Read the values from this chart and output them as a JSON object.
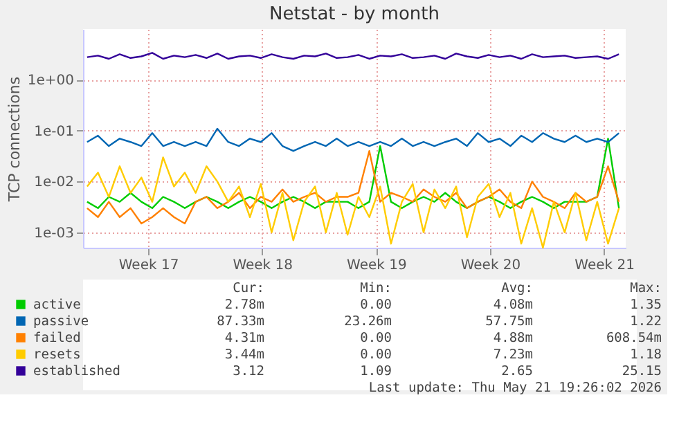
{
  "chart_data": {
    "type": "line",
    "title": "Netstat - by month",
    "ylabel": "TCP connections",
    "log": true,
    "grid": true,
    "legend": "bottom left",
    "marker": "none",
    "line_style": "solid",
    "xlim": [
      "2026-04-16T00:00",
      "2026-05-19T08:00"
    ],
    "xticks": [
      {
        "value": "2026-04-20",
        "label": "Week 17"
      },
      {
        "value": "2026-04-27",
        "label": "Week 18"
      },
      {
        "value": "2026-05-04",
        "label": "Week 19"
      },
      {
        "value": "2026-05-11",
        "label": "Week 20"
      },
      {
        "value": "2026-05-18",
        "label": "Week 21"
      }
    ],
    "ylim": [
      0.0005,
      10
    ],
    "yticks": [
      {
        "value": 0.001,
        "label": "1e-03"
      },
      {
        "value": 0.01,
        "label": "1e-02"
      },
      {
        "value": 0.1,
        "label": "1e-01"
      },
      {
        "value": 1,
        "label": "1e+00"
      }
    ],
    "x": [
      "2026-04-16T06:00",
      "2026-04-16T22:00",
      "2026-04-17T14:00",
      "2026-04-18T06:00",
      "2026-04-18T22:00",
      "2026-04-19T14:00",
      "2026-04-20T06:00",
      "2026-04-20T22:00",
      "2026-04-21T14:00",
      "2026-04-22T06:00",
      "2026-04-22T22:00",
      "2026-04-23T14:00",
      "2026-04-24T06:00",
      "2026-04-24T22:00",
      "2026-04-25T14:00",
      "2026-04-26T06:00",
      "2026-04-26T22:00",
      "2026-04-27T14:00",
      "2026-04-28T06:00",
      "2026-04-28T22:00",
      "2026-04-29T14:00",
      "2026-04-30T06:00",
      "2026-04-30T22:00",
      "2026-05-01T14:00",
      "2026-05-02T06:00",
      "2026-05-02T22:00",
      "2026-05-03T14:00",
      "2026-05-04T06:00",
      "2026-05-04T22:00",
      "2026-05-05T14:00",
      "2026-05-06T06:00",
      "2026-05-06T22:00",
      "2026-05-07T14:00",
      "2026-05-08T06:00",
      "2026-05-08T22:00",
      "2026-05-09T14:00",
      "2026-05-10T06:00",
      "2026-05-10T22:00",
      "2026-05-11T14:00",
      "2026-05-12T06:00",
      "2026-05-12T22:00",
      "2026-05-13T14:00",
      "2026-05-14T06:00",
      "2026-05-14T22:00",
      "2026-05-15T14:00",
      "2026-05-16T06:00",
      "2026-05-16T22:00",
      "2026-05-17T14:00",
      "2026-05-18T06:00",
      "2026-05-18T22:00"
    ],
    "series": [
      {
        "name": "active",
        "color": "#00cc00",
        "values": [
          0.004,
          0.003,
          0.005,
          0.004,
          0.006,
          0.004,
          0.003,
          0.005,
          0.004,
          0.003,
          0.004,
          0.005,
          0.004,
          0.003,
          0.004,
          0.005,
          0.004,
          0.003,
          0.004,
          0.005,
          0.004,
          0.003,
          0.004,
          0.004,
          0.004,
          0.003,
          0.004,
          0.05,
          0.004,
          0.003,
          0.004,
          0.005,
          0.004,
          0.006,
          0.004,
          0.003,
          0.004,
          0.005,
          0.004,
          0.003,
          0.004,
          0.005,
          0.004,
          0.003,
          0.004,
          0.004,
          0.004,
          0.005,
          0.07,
          0.003
        ]
      },
      {
        "name": "passive",
        "color": "#0066b3",
        "values": [
          0.06,
          0.08,
          0.05,
          0.07,
          0.06,
          0.05,
          0.09,
          0.05,
          0.06,
          0.05,
          0.06,
          0.05,
          0.11,
          0.06,
          0.05,
          0.07,
          0.06,
          0.09,
          0.05,
          0.04,
          0.05,
          0.06,
          0.05,
          0.07,
          0.05,
          0.06,
          0.05,
          0.06,
          0.05,
          0.07,
          0.05,
          0.06,
          0.05,
          0.06,
          0.07,
          0.05,
          0.09,
          0.06,
          0.07,
          0.05,
          0.08,
          0.06,
          0.09,
          0.07,
          0.06,
          0.08,
          0.06,
          0.07,
          0.06,
          0.09
        ]
      },
      {
        "name": "failed",
        "color": "#ff8000",
        "values": [
          0.003,
          0.002,
          0.004,
          0.002,
          0.003,
          0.0015,
          0.002,
          0.003,
          0.002,
          0.0015,
          0.004,
          0.005,
          0.003,
          0.004,
          0.006,
          0.003,
          0.005,
          0.004,
          0.007,
          0.004,
          0.005,
          0.006,
          0.004,
          0.005,
          0.005,
          0.006,
          0.04,
          0.004,
          0.006,
          0.005,
          0.004,
          0.007,
          0.005,
          0.004,
          0.006,
          0.003,
          0.004,
          0.005,
          0.007,
          0.004,
          0.003,
          0.01,
          0.005,
          0.004,
          0.003,
          0.006,
          0.004,
          0.005,
          0.02,
          0.004
        ]
      },
      {
        "name": "resets",
        "color": "#ffcc00",
        "values": [
          0.008,
          0.015,
          0.005,
          0.02,
          0.006,
          0.012,
          0.004,
          0.03,
          0.008,
          0.015,
          0.006,
          0.02,
          0.01,
          0.004,
          0.008,
          0.002,
          0.009,
          0.001,
          0.006,
          0.0007,
          0.004,
          0.008,
          0.001,
          0.006,
          0.0009,
          0.005,
          0.002,
          0.008,
          0.0006,
          0.004,
          0.009,
          0.001,
          0.007,
          0.003,
          0.008,
          0.0008,
          0.005,
          0.009,
          0.002,
          0.006,
          0.0006,
          0.003,
          0.0005,
          0.004,
          0.001,
          0.006,
          0.0007,
          0.004,
          0.0006,
          0.003
        ]
      },
      {
        "name": "established",
        "color": "#330099",
        "values": [
          2.8,
          3.0,
          2.6,
          3.2,
          2.7,
          2.9,
          3.4,
          2.6,
          3.0,
          2.8,
          3.1,
          2.7,
          3.3,
          2.6,
          2.9,
          3.0,
          2.7,
          3.2,
          2.8,
          2.6,
          3.0,
          2.9,
          3.3,
          2.7,
          2.8,
          3.1,
          2.6,
          3.0,
          2.9,
          3.2,
          2.7,
          2.8,
          3.0,
          2.6,
          3.3,
          2.9,
          2.7,
          3.1,
          2.8,
          3.0,
          2.6,
          3.2,
          2.8,
          2.9,
          3.0,
          2.7,
          2.8,
          2.9,
          2.6,
          3.2
        ]
      }
    ],
    "annotations": [
      "Cur:",
      "Min:",
      "Avg:",
      "Max:",
      "2.78m",
      "0.00",
      "4.08m",
      "1.35",
      "87.33m",
      "23.26m",
      "57.75m",
      "1.22",
      "4.31m",
      "0.00",
      "4.88m",
      "608.54m",
      "3.44m",
      "0.00",
      "7.23m",
      "1.18",
      "3.12",
      "1.09",
      "2.65",
      "25.15",
      "Last update: Thu May 21 19:26:02 2026"
    ]
  }
}
